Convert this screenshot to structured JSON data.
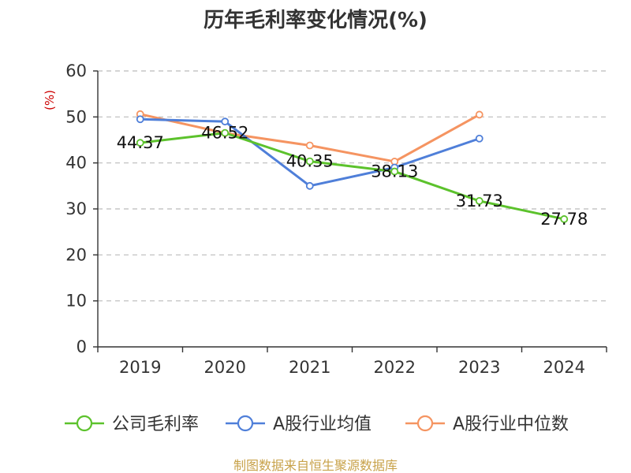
{
  "chart_data": {
    "type": "line",
    "title": "历年毛利率变化情况(%)",
    "ylabel": "(%)",
    "xlabel": "",
    "categories": [
      "2019",
      "2020",
      "2021",
      "2022",
      "2023",
      "2024"
    ],
    "ylim": [
      0,
      60
    ],
    "yticks": [
      0,
      10,
      20,
      30,
      40,
      50,
      60
    ],
    "grid": true,
    "legend_position": "bottom",
    "series": [
      {
        "name": "公司毛利率",
        "color": "#5cc22c",
        "values": [
          44.37,
          46.52,
          40.35,
          38.13,
          31.73,
          27.78
        ],
        "labels": [
          "44.37",
          "46.52",
          "40.35",
          "38.13",
          "31.73",
          "27.78"
        ]
      },
      {
        "name": "A股行业均值",
        "color": "#4f7fd9",
        "values": [
          49.5,
          49.0,
          35.0,
          39.0,
          45.3,
          null
        ]
      },
      {
        "name": "A股行业中位数",
        "color": "#f59461",
        "values": [
          50.6,
          46.5,
          43.8,
          40.3,
          50.5,
          null
        ]
      }
    ]
  },
  "source": "制图数据来自恒生聚源数据库"
}
